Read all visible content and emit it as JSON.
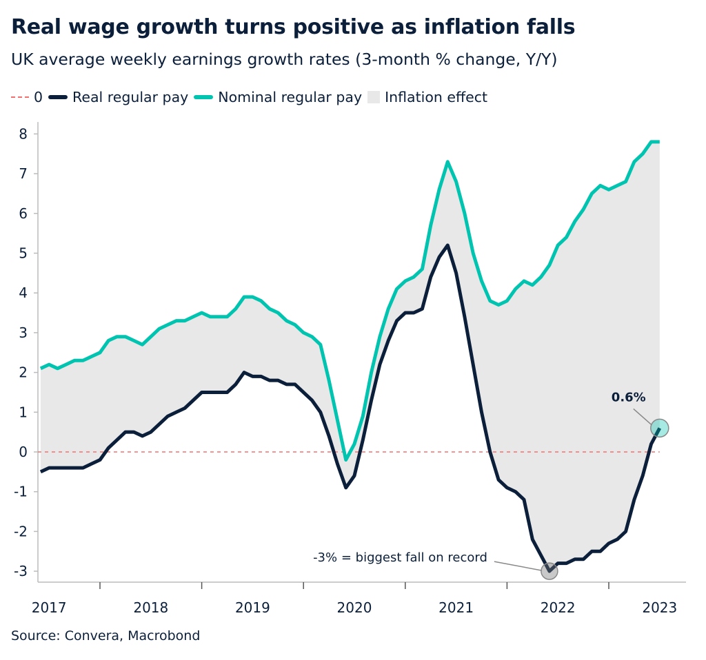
{
  "title": "Real wage growth turns positive as inflation falls",
  "subtitle": "UK average weekly earnings growth rates (3-month % change, Y/Y)",
  "legend": [
    {
      "label": "0",
      "style": "dashed",
      "color": "#f07070"
    },
    {
      "label": "Real regular pay",
      "style": "line",
      "color": "#0b1f3a"
    },
    {
      "label": "Nominal regular pay",
      "style": "line",
      "color": "#00c4b0"
    },
    {
      "label": "Inflation effect",
      "style": "area",
      "color": "#e8e8e8"
    }
  ],
  "source": "Source: Convera, Macrobond",
  "chart_data": {
    "type": "line",
    "xlabel": "",
    "ylabel": "",
    "ylim": [
      -3.2,
      8.3
    ],
    "yticks": [
      8,
      7,
      6,
      5,
      4,
      3,
      2,
      1,
      0,
      -1,
      -2,
      -3
    ],
    "xtick_labels": [
      "2017",
      "2018",
      "2019",
      "2020",
      "2021",
      "2022",
      "2023"
    ],
    "grid": false,
    "legend_position": "top",
    "x": [
      "2017-06",
      "2017-07",
      "2017-08",
      "2017-09",
      "2017-10",
      "2017-11",
      "2017-12",
      "2018-01",
      "2018-02",
      "2018-03",
      "2018-04",
      "2018-05",
      "2018-06",
      "2018-07",
      "2018-08",
      "2018-09",
      "2018-10",
      "2018-11",
      "2018-12",
      "2019-01",
      "2019-02",
      "2019-03",
      "2019-04",
      "2019-05",
      "2019-06",
      "2019-07",
      "2019-08",
      "2019-09",
      "2019-10",
      "2019-11",
      "2019-12",
      "2020-01",
      "2020-02",
      "2020-03",
      "2020-04",
      "2020-05",
      "2020-06",
      "2020-07",
      "2020-08",
      "2020-09",
      "2020-10",
      "2020-11",
      "2020-12",
      "2021-01",
      "2021-02",
      "2021-03",
      "2021-04",
      "2021-05",
      "2021-06",
      "2021-07",
      "2021-08",
      "2021-09",
      "2021-10",
      "2021-11",
      "2021-12",
      "2022-01",
      "2022-02",
      "2022-03",
      "2022-04",
      "2022-05",
      "2022-06",
      "2022-07",
      "2022-08",
      "2022-09",
      "2022-10",
      "2022-11",
      "2022-12",
      "2023-01",
      "2023-02",
      "2023-03",
      "2023-04",
      "2023-05",
      "2023-06",
      "2023-07"
    ],
    "series": [
      {
        "name": "Nominal regular pay",
        "color": "#00c4b0",
        "values": [
          2.1,
          2.2,
          2.1,
          2.2,
          2.3,
          2.3,
          2.4,
          2.5,
          2.8,
          2.9,
          2.9,
          2.8,
          2.7,
          2.9,
          3.1,
          3.2,
          3.3,
          3.3,
          3.4,
          3.5,
          3.4,
          3.4,
          3.4,
          3.6,
          3.9,
          3.9,
          3.8,
          3.6,
          3.5,
          3.3,
          3.2,
          3.0,
          2.9,
          2.7,
          1.8,
          0.8,
          -0.2,
          0.2,
          0.9,
          2.0,
          2.9,
          3.6,
          4.1,
          4.3,
          4.4,
          4.6,
          5.7,
          6.6,
          7.3,
          6.8,
          6.0,
          5.0,
          4.3,
          3.8,
          3.7,
          3.8,
          4.1,
          4.3,
          4.2,
          4.4,
          4.7,
          5.2,
          5.4,
          5.8,
          6.1,
          6.5,
          6.7,
          6.6,
          6.7,
          6.8,
          7.3,
          7.5,
          7.8,
          7.8
        ]
      },
      {
        "name": "Real regular pay",
        "color": "#0b1f3a",
        "values": [
          -0.5,
          -0.4,
          -0.4,
          -0.4,
          -0.4,
          -0.4,
          -0.3,
          -0.2,
          0.1,
          0.3,
          0.5,
          0.5,
          0.4,
          0.5,
          0.7,
          0.9,
          1.0,
          1.1,
          1.3,
          1.5,
          1.5,
          1.5,
          1.5,
          1.7,
          2.0,
          1.9,
          1.9,
          1.8,
          1.8,
          1.7,
          1.7,
          1.5,
          1.3,
          1.0,
          0.4,
          -0.3,
          -0.9,
          -0.6,
          0.3,
          1.3,
          2.2,
          2.8,
          3.3,
          3.5,
          3.5,
          3.6,
          4.4,
          4.9,
          5.2,
          4.5,
          3.4,
          2.2,
          1.0,
          0.0,
          -0.7,
          -0.9,
          -1.0,
          -1.2,
          -2.2,
          -2.6,
          -3.0,
          -2.8,
          -2.8,
          -2.7,
          -2.7,
          -2.5,
          -2.5,
          -2.3,
          -2.2,
          -2.0,
          -1.2,
          -0.6,
          0.2,
          0.6
        ]
      }
    ],
    "reference_line": {
      "label": "0",
      "value": 0,
      "color": "#f07070"
    },
    "area": {
      "label": "Inflation effect",
      "between": [
        "Nominal regular pay",
        "Real regular pay"
      ],
      "color": "#e8e8e8"
    },
    "annotations": [
      {
        "text": "0.6%",
        "series": "Real regular pay",
        "x": "2023-07",
        "value": 0.6
      },
      {
        "text": "-3% = biggest fall on record",
        "series": "Real regular pay",
        "x": "2022-06",
        "value": -3.0
      }
    ]
  }
}
